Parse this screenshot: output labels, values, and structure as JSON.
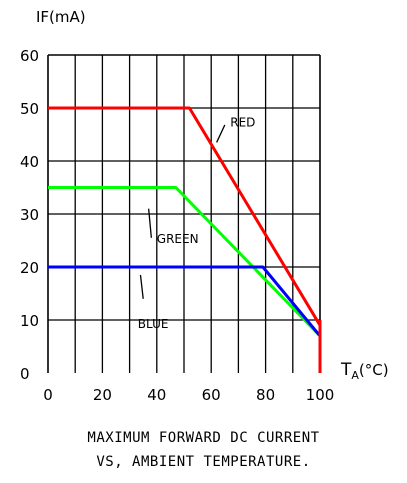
{
  "chart_data": {
    "type": "line",
    "ylabel": "IF(mA)",
    "xlabel": "TA(°C)",
    "xlabel_main": "T",
    "xlabel_sub": "A",
    "xlabel_unit": "(°C)",
    "xlim": [
      0,
      100
    ],
    "ylim": [
      0,
      60
    ],
    "x_ticks": [
      0,
      20,
      40,
      60,
      80,
      100
    ],
    "y_ticks": [
      0,
      10,
      20,
      30,
      40,
      50,
      60
    ],
    "x_tick_labels": [
      "0",
      "20",
      "40",
      "60",
      "80",
      "100"
    ],
    "y_tick_labels": [
      "0",
      "10",
      "20",
      "30",
      "40",
      "50",
      "60"
    ],
    "grid": true,
    "grid_x_lines": [
      10,
      20,
      30,
      40,
      50,
      60,
      70,
      80,
      90
    ],
    "grid_y_lines": [
      10,
      20,
      30,
      40,
      50
    ],
    "series": [
      {
        "name": "RED",
        "color": "#ff0000",
        "x": [
          0,
          52,
          100
        ],
        "y": [
          50,
          50,
          9
        ]
      },
      {
        "name": "GREEN",
        "color": "#00ff00",
        "x": [
          0,
          47,
          100
        ],
        "y": [
          35,
          35,
          7
        ]
      },
      {
        "name": "BLUE",
        "color": "#0000ff",
        "x": [
          0,
          79,
          100
        ],
        "y": [
          20,
          20,
          7
        ]
      }
    ],
    "annotations": [
      {
        "text": "RED",
        "series": "RED",
        "label_x": 67,
        "label_y": 46.5,
        "pointer": [
          [
            62,
            43.5
          ],
          [
            65,
            46.8
          ]
        ]
      },
      {
        "text": "GREEN",
        "series": "GREEN",
        "label_x": 40,
        "label_y": 24.5,
        "pointer": [
          [
            38,
            25.5
          ],
          [
            37,
            31
          ]
        ]
      },
      {
        "text": "BLUE",
        "series": "BLUE",
        "label_x": 33,
        "label_y": 8.5,
        "pointer": [
          [
            35,
            14
          ],
          [
            34,
            18.5
          ]
        ]
      }
    ],
    "caption_line1": "MAXIMUM FORWARD DC CURRENT",
    "caption_line2": "VS, AMBIENT TEMPERATURE."
  }
}
